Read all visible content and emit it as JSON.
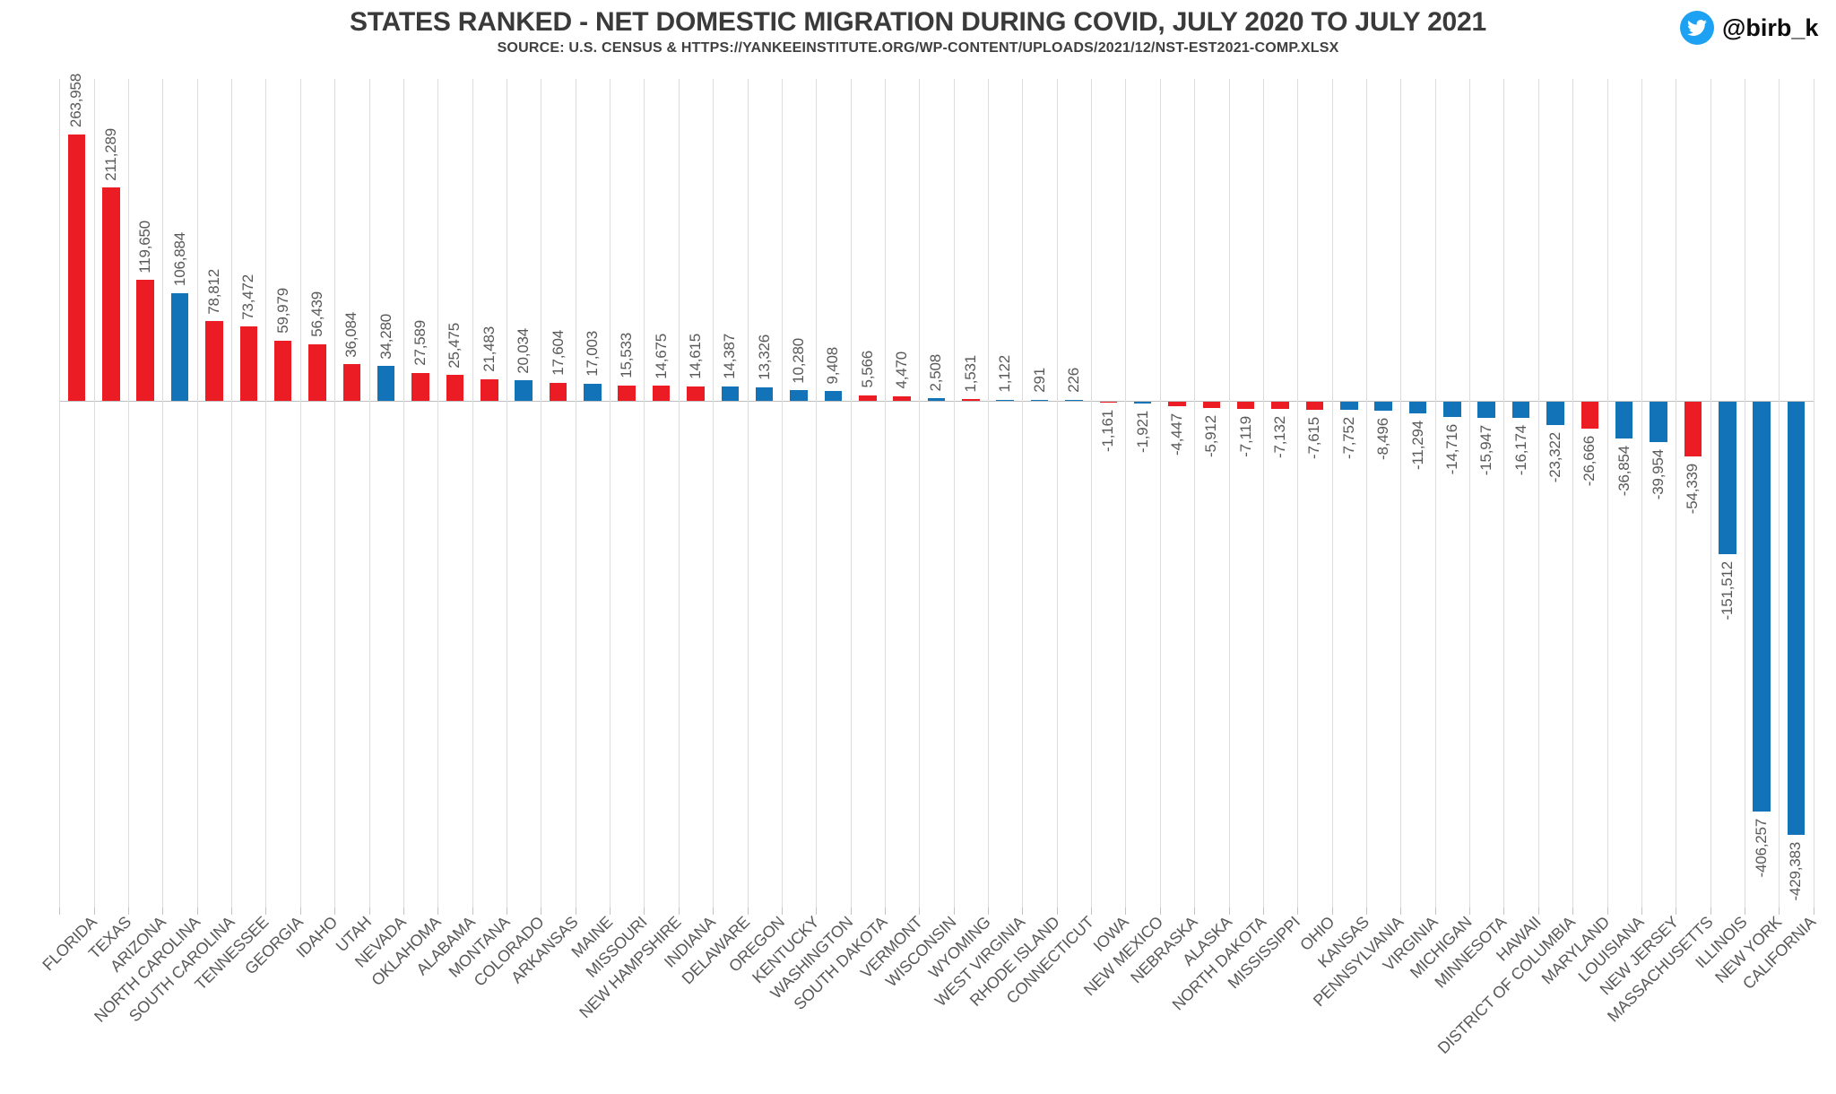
{
  "page": {
    "twitter_handle": "@birb_k",
    "twitter_blue": "#1da1f2"
  },
  "chart_data": {
    "type": "bar",
    "title": "STATES RANKED - NET DOMESTIC MIGRATION DURING COVID, JULY 2020 TO JULY 2021",
    "subtitle": "SOURCE: U.S. CENSUS & HTTPS://YANKEEINSTITUTE.ORG/WP-CONTENT/UPLOADS/2021/12/NST-EST2021-COMP.XLSX",
    "xlabel": "",
    "ylabel": "",
    "legend": "none",
    "grid": "vertical gridlines between categories, zero baseline",
    "y_domain": [
      -429383,
      263958
    ],
    "value_label_color": "#595959",
    "axis_label_color": "#595959",
    "bar_palette": {
      "red": "#ec1c24",
      "blue": "#1273b9"
    },
    "points": [
      {
        "state": "FLORIDA",
        "value": 263958,
        "label": "263,958",
        "color": "red"
      },
      {
        "state": "TEXAS",
        "value": 211289,
        "label": "211,289",
        "color": "red"
      },
      {
        "state": "ARIZONA",
        "value": 119650,
        "label": "119,650",
        "color": "red"
      },
      {
        "state": "NORTH CAROLINA",
        "value": 106884,
        "label": "106,884",
        "color": "blue"
      },
      {
        "state": "SOUTH CAROLINA",
        "value": 78812,
        "label": "78,812",
        "color": "red"
      },
      {
        "state": "TENNESSEE",
        "value": 73472,
        "label": "73,472",
        "color": "red"
      },
      {
        "state": "GEORGIA",
        "value": 59979,
        "label": "59,979",
        "color": "red"
      },
      {
        "state": "IDAHO",
        "value": 56439,
        "label": "56,439",
        "color": "red"
      },
      {
        "state": "UTAH",
        "value": 36084,
        "label": "36,084",
        "color": "red"
      },
      {
        "state": "NEVADA",
        "value": 34280,
        "label": "34,280",
        "color": "blue"
      },
      {
        "state": "OKLAHOMA",
        "value": 27589,
        "label": "27,589",
        "color": "red"
      },
      {
        "state": "ALABAMA",
        "value": 25475,
        "label": "25,475",
        "color": "red"
      },
      {
        "state": "MONTANA",
        "value": 21483,
        "label": "21,483",
        "color": "red"
      },
      {
        "state": "COLORADO",
        "value": 20034,
        "label": "20,034",
        "color": "blue"
      },
      {
        "state": "ARKANSAS",
        "value": 17604,
        "label": "17,604",
        "color": "red"
      },
      {
        "state": "MAINE",
        "value": 17003,
        "label": "17,003",
        "color": "blue"
      },
      {
        "state": "MISSOURI",
        "value": 15533,
        "label": "15,533",
        "color": "red"
      },
      {
        "state": "NEW HAMPSHIRE",
        "value": 14675,
        "label": "14,675",
        "color": "red"
      },
      {
        "state": "INDIANA",
        "value": 14615,
        "label": "14,615",
        "color": "red"
      },
      {
        "state": "DELAWARE",
        "value": 14387,
        "label": "14,387",
        "color": "blue"
      },
      {
        "state": "OREGON",
        "value": 13326,
        "label": "13,326",
        "color": "blue"
      },
      {
        "state": "KENTUCKY",
        "value": 10280,
        "label": "10,280",
        "color": "blue"
      },
      {
        "state": "WASHINGTON",
        "value": 9408,
        "label": "9,408",
        "color": "blue"
      },
      {
        "state": "SOUTH DAKOTA",
        "value": 5566,
        "label": "5,566",
        "color": "red"
      },
      {
        "state": "VERMONT",
        "value": 4470,
        "label": "4,470",
        "color": "red"
      },
      {
        "state": "WISCONSIN",
        "value": 2508,
        "label": "2,508",
        "color": "blue"
      },
      {
        "state": "WYOMING",
        "value": 1531,
        "label": "1,531",
        "color": "red"
      },
      {
        "state": "WEST VIRGINIA",
        "value": 1122,
        "label": "1,122",
        "color": "blue"
      },
      {
        "state": "RHODE ISLAND",
        "value": 291,
        "label": "291",
        "color": "blue"
      },
      {
        "state": "CONNECTICUT",
        "value": 226,
        "label": "226",
        "color": "blue"
      },
      {
        "state": "IOWA",
        "value": -1161,
        "label": "-1,161",
        "color": "red"
      },
      {
        "state": "NEW MEXICO",
        "value": -1921,
        "label": "-1,921",
        "color": "blue"
      },
      {
        "state": "NEBRASKA",
        "value": -4447,
        "label": "-4,447",
        "color": "red"
      },
      {
        "state": "ALASKA",
        "value": -5912,
        "label": "-5,912",
        "color": "red"
      },
      {
        "state": "NORTH DAKOTA",
        "value": -7119,
        "label": "-7,119",
        "color": "red"
      },
      {
        "state": "MISSISSIPPI",
        "value": -7132,
        "label": "-7,132",
        "color": "red"
      },
      {
        "state": "OHIO",
        "value": -7615,
        "label": "-7,615",
        "color": "red"
      },
      {
        "state": "KANSAS",
        "value": -7752,
        "label": "-7,752",
        "color": "blue"
      },
      {
        "state": "PENNSYLVANIA",
        "value": -8496,
        "label": "-8,496",
        "color": "blue"
      },
      {
        "state": "VIRGINIA",
        "value": -11294,
        "label": "-11,294",
        "color": "blue"
      },
      {
        "state": "MICHIGAN",
        "value": -14716,
        "label": "-14,716",
        "color": "blue"
      },
      {
        "state": "MINNESOTA",
        "value": -15947,
        "label": "-15,947",
        "color": "blue"
      },
      {
        "state": "HAWAII",
        "value": -16174,
        "label": "-16,174",
        "color": "blue"
      },
      {
        "state": "DISTRICT OF COLUMBIA",
        "value": -23322,
        "label": "-23,322",
        "color": "blue"
      },
      {
        "state": "MARYLAND",
        "value": -26666,
        "label": "-26,666",
        "color": "red"
      },
      {
        "state": "LOUISIANA",
        "value": -36854,
        "label": "-36,854",
        "color": "blue"
      },
      {
        "state": "NEW JERSEY",
        "value": -39954,
        "label": "-39,954",
        "color": "blue"
      },
      {
        "state": "MASSACHUSETTS",
        "value": -54339,
        "label": "-54,339",
        "color": "red"
      },
      {
        "state": "ILLINOIS",
        "value": -151512,
        "label": "-151,512",
        "color": "blue"
      },
      {
        "state": "NEW YORK",
        "value": -406257,
        "label": "-406,257",
        "color": "blue"
      },
      {
        "state": "CALIFORNIA",
        "value": -429383,
        "label": "-429,383",
        "color": "blue"
      }
    ]
  }
}
